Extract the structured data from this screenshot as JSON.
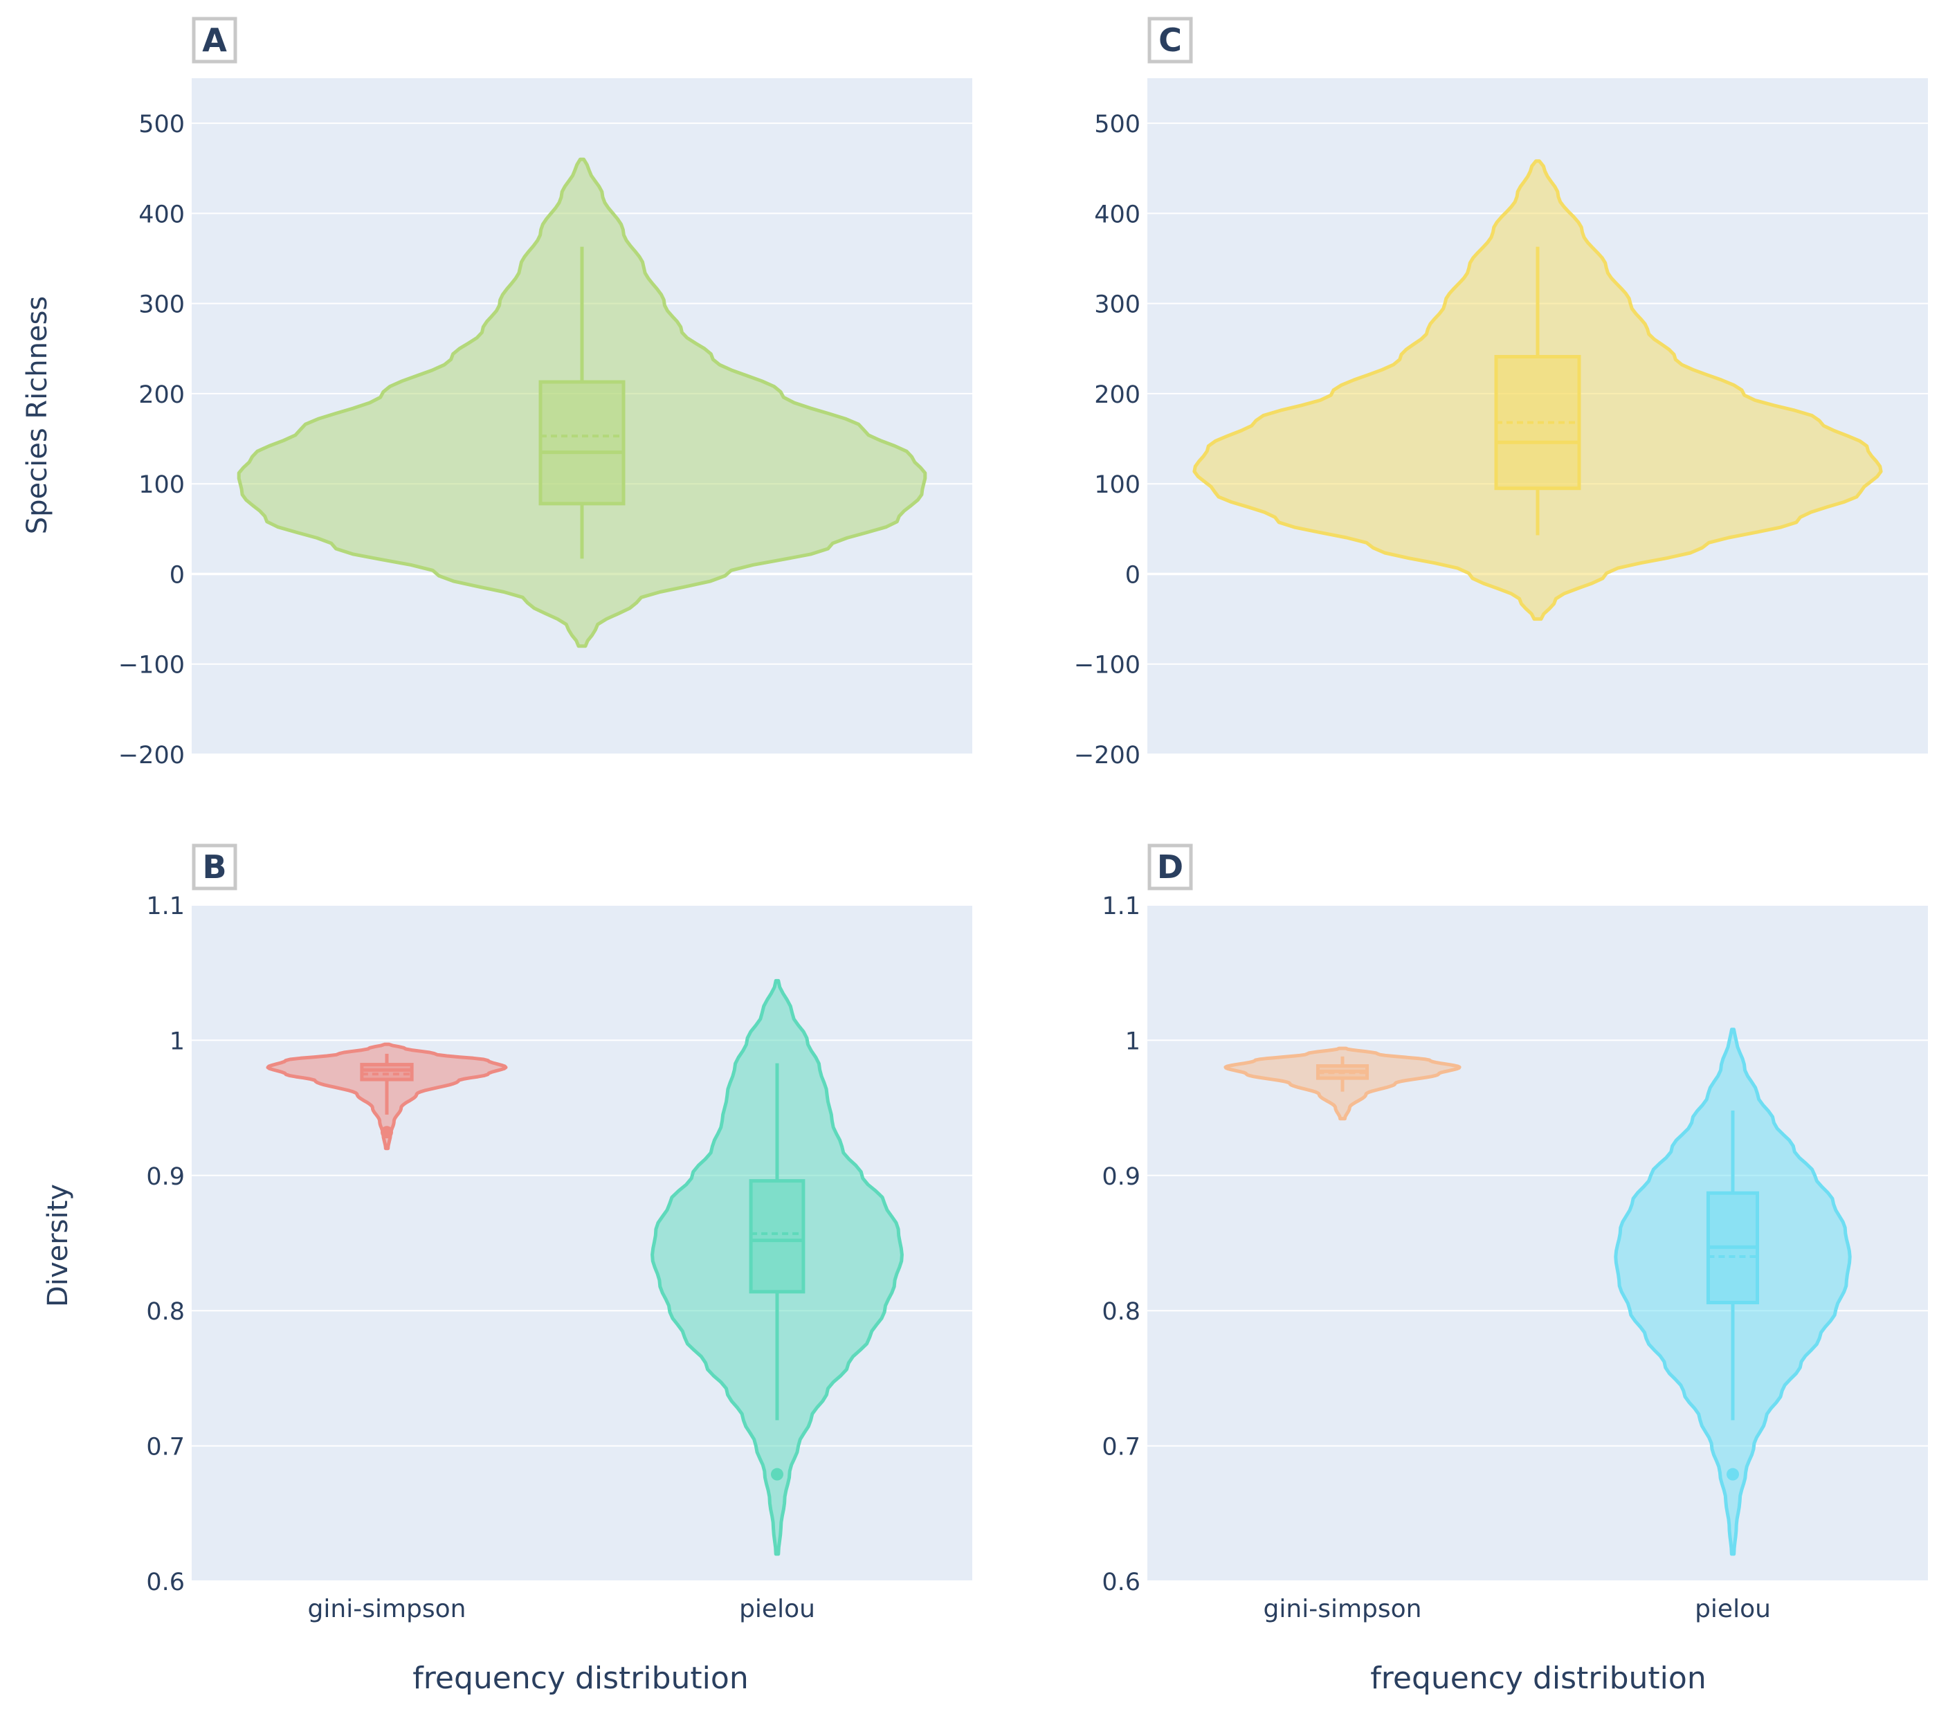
{
  "colors": {
    "plot_bg": "#E5ECF6",
    "grid": "#FFFFFF",
    "text": "#2A3F5F",
    "label_border": "#C8C8C8",
    "panel_A": "#B3D87A",
    "panel_B_gini": "#EE8A82",
    "panel_B_pielou": "#5ED9BB",
    "panel_C": "#F5DC63",
    "panel_D_gini": "#F6BC92",
    "panel_D_pielou": "#6EDDF2"
  },
  "axis_titles": {
    "species_richness": "Species Richness",
    "diversity": "Diversity",
    "x_bottom_left": "frequency distribution",
    "x_bottom_right": "frequency distribution"
  },
  "chart_data": [
    {
      "panel": "A",
      "type": "violin",
      "ylabel": "Species Richness",
      "ylim": [
        -200,
        550
      ],
      "yticks": [
        -200,
        -100,
        0,
        100,
        200,
        300,
        400,
        500
      ],
      "ytick_labels": [
        "−200",
        "−100",
        "0",
        "100",
        "200",
        "300",
        "400",
        "500"
      ],
      "categories": [
        ""
      ],
      "series": [
        {
          "name": "",
          "color_key": "panel_A",
          "kde_min": -80,
          "kde_max": 460,
          "half_width": 0.44,
          "profile": [
            [
              -80,
              0.01
            ],
            [
              -60,
              0.04
            ],
            [
              -30,
              0.16
            ],
            [
              0,
              0.42
            ],
            [
              30,
              0.72
            ],
            [
              60,
              0.92
            ],
            [
              90,
              0.99
            ],
            [
              110,
              1.0
            ],
            [
              130,
              0.96
            ],
            [
              160,
              0.82
            ],
            [
              200,
              0.58
            ],
            [
              240,
              0.38
            ],
            [
              270,
              0.29
            ],
            [
              300,
              0.24
            ],
            [
              340,
              0.18
            ],
            [
              380,
              0.12
            ],
            [
              420,
              0.06
            ],
            [
              450,
              0.02
            ],
            [
              460,
              0.005
            ]
          ],
          "box": {
            "q1": 78,
            "median": 135,
            "mean": 153,
            "q3": 213,
            "lower_fence": 17,
            "upper_fence": 363
          },
          "outliers": []
        }
      ]
    },
    {
      "panel": "B",
      "type": "violin",
      "xlabel": "frequency distribution",
      "ylabel": "Diversity",
      "ylim": [
        0.6,
        1.1
      ],
      "yticks": [
        0.6,
        0.7,
        0.8,
        0.9,
        1.0,
        1.1
      ],
      "ytick_labels": [
        "0.6",
        "0.7",
        "0.8",
        "0.9",
        "1",
        "1.1"
      ],
      "categories": [
        "gini-simpson",
        "pielou"
      ],
      "series": [
        {
          "name": "gini-simpson",
          "color_key": "panel_B_gini",
          "kde_min": 0.92,
          "kde_max": 0.997,
          "half_width": 0.305,
          "profile": [
            [
              0.92,
              0.01
            ],
            [
              0.93,
              0.03
            ],
            [
              0.94,
              0.06
            ],
            [
              0.95,
              0.12
            ],
            [
              0.96,
              0.25
            ],
            [
              0.97,
              0.6
            ],
            [
              0.975,
              0.85
            ],
            [
              0.98,
              1.0
            ],
            [
              0.985,
              0.85
            ],
            [
              0.99,
              0.4
            ],
            [
              0.994,
              0.15
            ],
            [
              0.997,
              0.02
            ]
          ],
          "box": {
            "q1": 0.971,
            "median": 0.978,
            "mean": 0.975,
            "q3": 0.982,
            "lower_fence": 0.945,
            "upper_fence": 0.99
          },
          "outliers": [
            0.932
          ]
        },
        {
          "name": "pielou",
          "color_key": "panel_B_pielou",
          "kde_min": 0.62,
          "kde_max": 1.044,
          "half_width": 0.32,
          "profile": [
            [
              0.62,
              0.01
            ],
            [
              0.64,
              0.03
            ],
            [
              0.66,
              0.06
            ],
            [
              0.68,
              0.1
            ],
            [
              0.7,
              0.17
            ],
            [
              0.72,
              0.27
            ],
            [
              0.74,
              0.4
            ],
            [
              0.76,
              0.57
            ],
            [
              0.78,
              0.74
            ],
            [
              0.8,
              0.86
            ],
            [
              0.82,
              0.94
            ],
            [
              0.84,
              1.0
            ],
            [
              0.86,
              0.97
            ],
            [
              0.88,
              0.86
            ],
            [
              0.9,
              0.68
            ],
            [
              0.92,
              0.52
            ],
            [
              0.94,
              0.44
            ],
            [
              0.96,
              0.4
            ],
            [
              0.98,
              0.34
            ],
            [
              1.0,
              0.24
            ],
            [
              1.02,
              0.12
            ],
            [
              1.044,
              0.01
            ]
          ],
          "box": {
            "q1": 0.814,
            "median": 0.852,
            "mean": 0.857,
            "q3": 0.896,
            "lower_fence": 0.719,
            "upper_fence": 0.983
          },
          "outliers": [
            0.679
          ]
        }
      ]
    },
    {
      "panel": "C",
      "type": "violin",
      "ylim": [
        -200,
        550
      ],
      "yticks": [
        -200,
        -100,
        0,
        100,
        200,
        300,
        400,
        500
      ],
      "ytick_labels": [
        "−200",
        "−100",
        "0",
        "100",
        "200",
        "300",
        "400",
        "500"
      ],
      "categories": [
        ""
      ],
      "series": [
        {
          "name": "",
          "color_key": "panel_C",
          "kde_min": -50,
          "kde_max": 458,
          "half_width": 0.44,
          "profile": [
            [
              -50,
              0.01
            ],
            [
              -30,
              0.05
            ],
            [
              0,
              0.2
            ],
            [
              30,
              0.48
            ],
            [
              60,
              0.76
            ],
            [
              90,
              0.94
            ],
            [
              115,
              1.0
            ],
            [
              140,
              0.96
            ],
            [
              170,
              0.82
            ],
            [
              200,
              0.6
            ],
            [
              240,
              0.4
            ],
            [
              270,
              0.32
            ],
            [
              300,
              0.27
            ],
            [
              340,
              0.2
            ],
            [
              380,
              0.13
            ],
            [
              420,
              0.06
            ],
            [
              450,
              0.02
            ],
            [
              458,
              0.005
            ]
          ],
          "box": {
            "q1": 95,
            "median": 146,
            "mean": 168,
            "q3": 241,
            "lower_fence": 43,
            "upper_fence": 363
          },
          "outliers": []
        }
      ]
    },
    {
      "panel": "D",
      "type": "violin",
      "xlabel": "frequency distribution",
      "ylim": [
        0.6,
        1.1
      ],
      "yticks": [
        0.6,
        0.7,
        0.8,
        0.9,
        1.0,
        1.1
      ],
      "ytick_labels": [
        "0.6",
        "0.7",
        "0.8",
        "0.9",
        "1",
        "1.1"
      ],
      "categories": [
        "gini-simpson",
        "pielou"
      ],
      "series": [
        {
          "name": "gini-simpson",
          "color_key": "panel_D_gini",
          "kde_min": 0.942,
          "kde_max": 0.994,
          "half_width": 0.3,
          "profile": [
            [
              0.942,
              0.02
            ],
            [
              0.95,
              0.06
            ],
            [
              0.96,
              0.2
            ],
            [
              0.968,
              0.45
            ],
            [
              0.975,
              0.82
            ],
            [
              0.98,
              1.0
            ],
            [
              0.985,
              0.75
            ],
            [
              0.99,
              0.3
            ],
            [
              0.994,
              0.03
            ]
          ],
          "box": {
            "q1": 0.972,
            "median": 0.977,
            "mean": 0.976,
            "q3": 0.981,
            "lower_fence": 0.962,
            "upper_fence": 0.988
          },
          "outliers": []
        },
        {
          "name": "pielou",
          "color_key": "panel_D_pielou",
          "kde_min": 0.62,
          "kde_max": 1.008,
          "half_width": 0.3,
          "profile": [
            [
              0.62,
              0.01
            ],
            [
              0.64,
              0.03
            ],
            [
              0.66,
              0.06
            ],
            [
              0.68,
              0.11
            ],
            [
              0.7,
              0.18
            ],
            [
              0.72,
              0.28
            ],
            [
              0.74,
              0.42
            ],
            [
              0.76,
              0.58
            ],
            [
              0.78,
              0.74
            ],
            [
              0.8,
              0.88
            ],
            [
              0.82,
              0.97
            ],
            [
              0.84,
              1.0
            ],
            [
              0.86,
              0.96
            ],
            [
              0.88,
              0.86
            ],
            [
              0.9,
              0.7
            ],
            [
              0.92,
              0.52
            ],
            [
              0.94,
              0.35
            ],
            [
              0.96,
              0.21
            ],
            [
              0.98,
              0.1
            ],
            [
              1.0,
              0.03
            ],
            [
              1.008,
              0.005
            ]
          ],
          "box": {
            "q1": 0.806,
            "median": 0.847,
            "mean": 0.84,
            "q3": 0.887,
            "lower_fence": 0.719,
            "upper_fence": 0.948
          },
          "outliers": [
            0.679
          ]
        }
      ]
    }
  ]
}
